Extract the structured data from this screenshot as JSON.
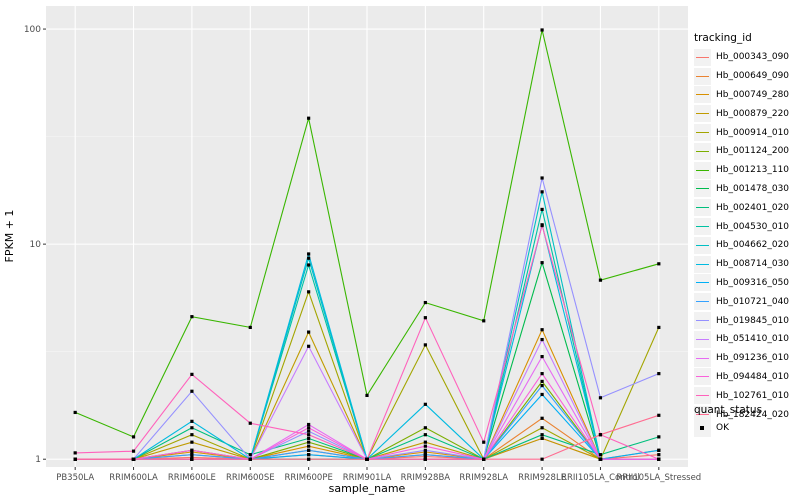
{
  "chart_data": {
    "type": "line",
    "xlabel": "sample_name",
    "ylabel": "FPKM + 1",
    "y_scale": "log10",
    "ylim": [
      0.92,
      128
    ],
    "y_ticks": [
      {
        "value": 1,
        "label": "1"
      },
      {
        "value": 10,
        "label": "10"
      },
      {
        "value": 100,
        "label": "100"
      }
    ],
    "categories": [
      "PB350LA",
      "RRIM600LA",
      "RRIM600LE",
      "RRIM600SE",
      "RRIM600PE",
      "RRIM901LA",
      "RRIM928BA",
      "RRIM928LA",
      "RRIM928LE",
      "RRII105LA_Control",
      "RRII105LA_Stressed"
    ],
    "series": [
      {
        "name": "Hb_000343_090",
        "color": "#F8766D",
        "values": [
          1.0,
          1.0,
          1.02,
          1.0,
          1.05,
          1.0,
          1.03,
          1.0,
          1.25,
          1.0,
          1.05
        ]
      },
      {
        "name": "Hb_000649_090",
        "color": "#EA8331",
        "values": [
          1.0,
          1.0,
          1.05,
          1.0,
          1.1,
          1.0,
          1.05,
          1.0,
          1.55,
          1.0,
          1.1
        ]
      },
      {
        "name": "Hb_000749_280",
        "color": "#D89000",
        "values": [
          1.0,
          1.0,
          1.08,
          1.0,
          1.15,
          1.0,
          1.08,
          1.0,
          4.0,
          1.0,
          1.0
        ]
      },
      {
        "name": "Hb_000879_220",
        "color": "#C09B00",
        "values": [
          1.0,
          1.0,
          1.2,
          1.0,
          3.9,
          1.0,
          1.2,
          1.0,
          1.25,
          1.0,
          1.0
        ]
      },
      {
        "name": "Hb_000914_010",
        "color": "#A3A500",
        "values": [
          1.0,
          1.0,
          1.3,
          1.0,
          6.0,
          1.0,
          3.4,
          1.0,
          1.4,
          1.0,
          4.1
        ]
      },
      {
        "name": "Hb_001124_200",
        "color": "#7CAE00",
        "values": [
          1.0,
          1.0,
          1.1,
          1.0,
          1.2,
          1.0,
          1.4,
          1.0,
          2.3,
          1.0,
          1.0
        ]
      },
      {
        "name": "Hb_001213_110",
        "color": "#39B600",
        "values": [
          1.65,
          1.27,
          4.6,
          4.1,
          38.5,
          1.98,
          5.35,
          4.4,
          99.0,
          6.8,
          8.1
        ]
      },
      {
        "name": "Hb_001478_030",
        "color": "#00BB4E",
        "values": [
          1.0,
          1.0,
          1.0,
          1.0,
          1.0,
          1.0,
          1.0,
          1.0,
          8.2,
          1.0,
          1.0
        ]
      },
      {
        "name": "Hb_002401_020",
        "color": "#00BF7D",
        "values": [
          1.0,
          1.0,
          1.4,
          1.05,
          1.25,
          1.0,
          1.3,
          1.0,
          1.3,
          1.05,
          1.27
        ]
      },
      {
        "name": "Hb_004530_010",
        "color": "#00C1A3",
        "values": [
          1.0,
          1.0,
          1.0,
          1.0,
          8.0,
          1.0,
          1.0,
          1.0,
          14.5,
          1.0,
          1.0
        ]
      },
      {
        "name": "Hb_004662_020",
        "color": "#00BFC4",
        "values": [
          1.0,
          1.0,
          1.0,
          1.0,
          8.6,
          1.0,
          1.0,
          1.0,
          17.5,
          1.0,
          1.0
        ]
      },
      {
        "name": "Hb_008714_030",
        "color": "#00BAE0",
        "values": [
          1.0,
          1.0,
          1.5,
          1.0,
          9.0,
          1.0,
          1.8,
          1.0,
          12.3,
          1.0,
          1.0
        ]
      },
      {
        "name": "Hb_009316_050",
        "color": "#00B0F6",
        "values": [
          1.0,
          1.0,
          1.0,
          1.0,
          1.05,
          1.0,
          1.0,
          1.0,
          2.0,
          1.0,
          1.1
        ]
      },
      {
        "name": "Hb_010721_040",
        "color": "#35A2FF",
        "values": [
          1.0,
          1.0,
          1.05,
          1.0,
          1.1,
          1.0,
          1.05,
          1.0,
          2.2,
          1.0,
          1.0
        ]
      },
      {
        "name": "Hb_019845_010",
        "color": "#9590FF",
        "values": [
          1.0,
          1.0,
          2.07,
          1.0,
          1.35,
          1.0,
          1.1,
          1.0,
          20.3,
          1.93,
          2.5
        ]
      },
      {
        "name": "Hb_051410_010",
        "color": "#C77CFF",
        "values": [
          1.0,
          1.0,
          1.0,
          1.0,
          3.35,
          1.0,
          1.0,
          1.0,
          3.6,
          1.0,
          1.0
        ]
      },
      {
        "name": "Hb_091236_010",
        "color": "#E76BF3",
        "values": [
          1.0,
          1.0,
          1.0,
          1.0,
          1.45,
          1.0,
          1.0,
          1.0,
          3.0,
          1.0,
          1.0
        ]
      },
      {
        "name": "Hb_094484_010",
        "color": "#FA62DB",
        "values": [
          1.0,
          1.0,
          1.1,
          1.0,
          1.4,
          1.0,
          1.15,
          1.0,
          2.5,
          1.0,
          1.0
        ]
      },
      {
        "name": "Hb_102761_010",
        "color": "#FF62BC",
        "values": [
          1.07,
          1.09,
          2.48,
          1.47,
          1.3,
          1.0,
          4.55,
          1.2,
          12.2,
          1.3,
          1.0
        ]
      },
      {
        "name": "Hb_182424_020",
        "color": "#FF6C91",
        "values": [
          1.0,
          1.0,
          1.0,
          1.0,
          1.0,
          1.0,
          1.0,
          1.0,
          1.0,
          1.3,
          1.6
        ]
      }
    ]
  },
  "legend": {
    "tracking_title": "tracking_id",
    "status_title": "quant_status",
    "status_label": "OK"
  }
}
